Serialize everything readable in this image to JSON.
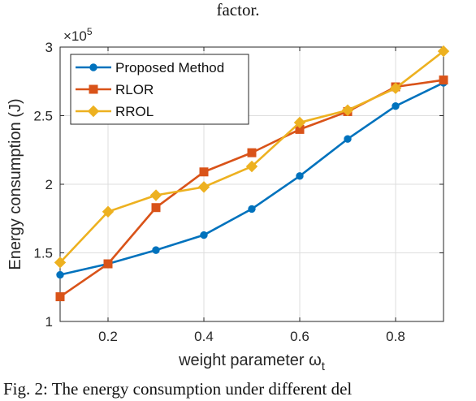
{
  "header_fragment": "factor.",
  "caption": "Fig. 2: The energy consumption under different del",
  "chart_data": {
    "type": "line",
    "x": [
      0.1,
      0.2,
      0.3,
      0.4,
      0.5,
      0.6,
      0.7,
      0.8,
      0.9
    ],
    "series": [
      {
        "name": "Proposed Method",
        "color": "#0072BD",
        "marker": "circle",
        "values": [
          134000,
          142000,
          152000,
          163000,
          182000,
          206000,
          233000,
          257000,
          274000
        ]
      },
      {
        "name": "RLOR",
        "color": "#D95319",
        "marker": "square",
        "values": [
          118000,
          142000,
          183000,
          209000,
          223000,
          240000,
          253000,
          271000,
          276000
        ]
      },
      {
        "name": "RROL",
        "color": "#EDB120",
        "marker": "diamond",
        "values": [
          143000,
          180000,
          192000,
          198000,
          213000,
          245000,
          254000,
          270000,
          297000
        ]
      }
    ],
    "xlabel": "weight parameter ω",
    "xlabel_subscript": "t",
    "ylabel": "Energy consumption (J)",
    "xlim": [
      0.1,
      0.9
    ],
    "ylim": [
      100000,
      300000
    ],
    "xticks": [
      0.2,
      0.4,
      0.6,
      0.8
    ],
    "xtick_labels": [
      "0.2",
      "0.4",
      "0.6",
      "0.8"
    ],
    "yticks": [
      100000,
      150000,
      200000,
      250000,
      300000
    ],
    "ytick_labels": [
      "1",
      "1.5",
      "2",
      "2.5",
      "3"
    ],
    "y_exponent_label": "×10",
    "y_exponent_power": "5",
    "grid": true,
    "legend_position": "top-left"
  }
}
